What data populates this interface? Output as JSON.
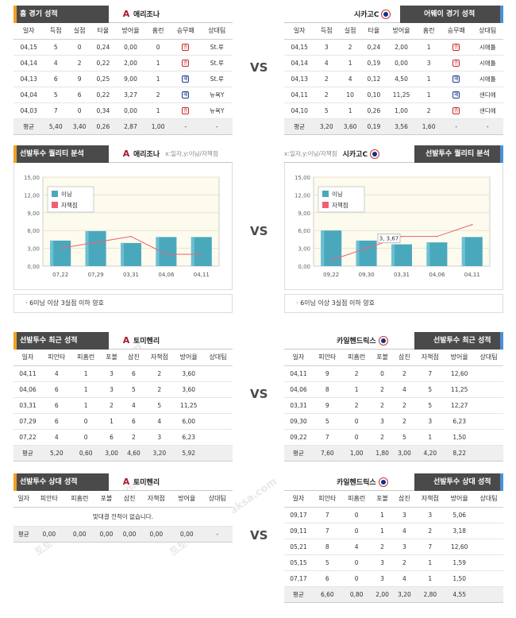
{
  "vs_label": "VS",
  "watermark": "토토박사 totobaksa.com",
  "section1": {
    "left": {
      "header": "홈 경기 성적",
      "team": "애리조나",
      "columns": [
        "일자",
        "득점",
        "실점",
        "타율",
        "방어율",
        "홈런",
        "승무패",
        "상대팀"
      ],
      "rows": [
        [
          "04,15",
          "5",
          "0",
          "0,24",
          "0,00",
          "0",
          "win",
          "St.루"
        ],
        [
          "04,14",
          "4",
          "2",
          "0,22",
          "2,00",
          "1",
          "win",
          "St.루"
        ],
        [
          "04,13",
          "6",
          "9",
          "0,25",
          "9,00",
          "1",
          "loss",
          "St.루"
        ],
        [
          "04,04",
          "5",
          "6",
          "0,22",
          "3,27",
          "2",
          "loss",
          "뉴욕Y"
        ],
        [
          "04,03",
          "7",
          "0",
          "0,34",
          "0,00",
          "1",
          "win",
          "뉴욕Y"
        ]
      ],
      "avg": [
        "평균",
        "5,40",
        "3,40",
        "0,26",
        "2,87",
        "1,00",
        "-",
        "-"
      ]
    },
    "right": {
      "header": "어웨이 경기 성적",
      "team": "시카고C",
      "columns": [
        "일자",
        "득점",
        "실점",
        "타율",
        "방어율",
        "홈런",
        "승무패",
        "상대팀"
      ],
      "rows": [
        [
          "04,15",
          "3",
          "2",
          "0,24",
          "2,00",
          "1",
          "win",
          "시애틀"
        ],
        [
          "04,14",
          "4",
          "1",
          "0,19",
          "0,00",
          "3",
          "win",
          "시애틀"
        ],
        [
          "04,13",
          "2",
          "4",
          "0,12",
          "4,50",
          "1",
          "loss",
          "시애틀"
        ],
        [
          "04,11",
          "2",
          "10",
          "0,10",
          "11,25",
          "1",
          "loss",
          "샌디에"
        ],
        [
          "04,10",
          "5",
          "1",
          "0,26",
          "1,00",
          "2",
          "win",
          "샌디에"
        ]
      ],
      "avg": [
        "평균",
        "3,20",
        "3,60",
        "0,19",
        "3,56",
        "1,60",
        "-",
        "-"
      ]
    }
  },
  "section2": {
    "left": {
      "header": "선발투수 퀄리티 분석",
      "team": "애리조나",
      "axis_hint": "x:일자,y:이닝/자책점",
      "note": "6이닝 이상 3실점 이하 양호"
    },
    "right": {
      "header": "선발투수 퀄리티 분석",
      "team": "시카고C",
      "axis_hint": "x:일자,y:이닝/자책점",
      "note": "6이닝 이상 3실점 이하 양호",
      "tooltip": "3, 3,67"
    }
  },
  "section3": {
    "left": {
      "header": "선발투수 최근 성적",
      "team": "토미헨리",
      "columns": [
        "일자",
        "피안타",
        "피홈런",
        "포볼",
        "삼진",
        "자책점",
        "방어율",
        "상대팀"
      ],
      "rows": [
        [
          "04,11",
          "4",
          "1",
          "3",
          "6",
          "2",
          "3,60",
          ""
        ],
        [
          "04,06",
          "6",
          "1",
          "3",
          "5",
          "2",
          "3,60",
          ""
        ],
        [
          "03,31",
          "6",
          "1",
          "2",
          "4",
          "5",
          "11,25",
          ""
        ],
        [
          "07,29",
          "6",
          "0",
          "1",
          "6",
          "4",
          "6,00",
          ""
        ],
        [
          "07,22",
          "4",
          "0",
          "6",
          "2",
          "3",
          "6,23",
          ""
        ]
      ],
      "avg": [
        "평균",
        "5,20",
        "0,60",
        "3,00",
        "4,60",
        "3,20",
        "5,92",
        ""
      ]
    },
    "right": {
      "header": "선발투수 최근 성적",
      "team": "카일헨드릭스",
      "columns": [
        "일자",
        "피안타",
        "피홈런",
        "포볼",
        "삼진",
        "자책점",
        "방어율",
        "상대팀"
      ],
      "rows": [
        [
          "04,11",
          "9",
          "2",
          "0",
          "2",
          "7",
          "12,60",
          ""
        ],
        [
          "04,06",
          "8",
          "1",
          "2",
          "4",
          "5",
          "11,25",
          ""
        ],
        [
          "03,31",
          "9",
          "2",
          "2",
          "2",
          "5",
          "12,27",
          ""
        ],
        [
          "09,30",
          "5",
          "0",
          "3",
          "2",
          "3",
          "6,23",
          ""
        ],
        [
          "09,22",
          "7",
          "0",
          "2",
          "5",
          "1",
          "1,50",
          ""
        ]
      ],
      "avg": [
        "평균",
        "7,60",
        "1,00",
        "1,80",
        "3,00",
        "4,20",
        "8,22",
        ""
      ]
    }
  },
  "section4": {
    "left": {
      "header": "선발투수 상대 성적",
      "team": "토미헨리",
      "columns": [
        "일자",
        "피안타",
        "피홈런",
        "포볼",
        "삼진",
        "자책점",
        "방어율",
        "상대팀"
      ],
      "empty": "맞대결 전적이 없습니다.",
      "avg": [
        "평균",
        "0,00",
        "0,00",
        "0,00",
        "0,00",
        "0,00",
        "0,00",
        "-"
      ]
    },
    "right": {
      "header": "선발투수 상대 성적",
      "team": "카일헨드릭스",
      "columns": [
        "일자",
        "피안타",
        "피홈런",
        "포볼",
        "삼진",
        "자책점",
        "방어율",
        "상대팀"
      ],
      "rows": [
        [
          "09,17",
          "7",
          "0",
          "1",
          "3",
          "3",
          "5,06",
          ""
        ],
        [
          "09,11",
          "7",
          "0",
          "1",
          "4",
          "2",
          "3,18",
          ""
        ],
        [
          "05,21",
          "8",
          "4",
          "2",
          "3",
          "7",
          "12,60",
          ""
        ],
        [
          "05,15",
          "5",
          "0",
          "3",
          "2",
          "1",
          "1,59",
          ""
        ],
        [
          "07,17",
          "6",
          "0",
          "3",
          "4",
          "1",
          "1,50",
          ""
        ]
      ],
      "avg": [
        "평균",
        "6,60",
        "0,80",
        "2,00",
        "3,20",
        "2,80",
        "4,55",
        ""
      ]
    }
  },
  "chart_data": [
    {
      "type": "bar",
      "categories": [
        "07,22",
        "07,29",
        "03,31",
        "04,06",
        "04,11"
      ],
      "ylim": [
        0,
        15
      ],
      "yticks": [
        "0,00",
        "3,00",
        "6,00",
        "9,00",
        "12,00",
        "15,00"
      ],
      "series": [
        {
          "name": "이닝",
          "values": [
            4.3,
            5.9,
            3.9,
            4.9,
            4.9
          ]
        },
        {
          "name": "자책점",
          "values": [
            3,
            4,
            5,
            2,
            2
          ]
        }
      ],
      "colors": {
        "bar": "#4aa8bd",
        "line": "#f06070"
      }
    },
    {
      "type": "bar",
      "categories": [
        "09,22",
        "09,30",
        "03,31",
        "04,06",
        "04,11"
      ],
      "ylim": [
        0,
        15
      ],
      "yticks": [
        "0,00",
        "3,00",
        "6,00",
        "9,00",
        "12,00",
        "15,00"
      ],
      "series": [
        {
          "name": "이닝",
          "values": [
            6.0,
            4.3,
            3.67,
            4.0,
            4.9
          ]
        },
        {
          "name": "자책점",
          "values": [
            1,
            3,
            5,
            5,
            7
          ]
        }
      ],
      "colors": {
        "bar": "#4aa8bd",
        "line": "#f06070"
      }
    }
  ]
}
